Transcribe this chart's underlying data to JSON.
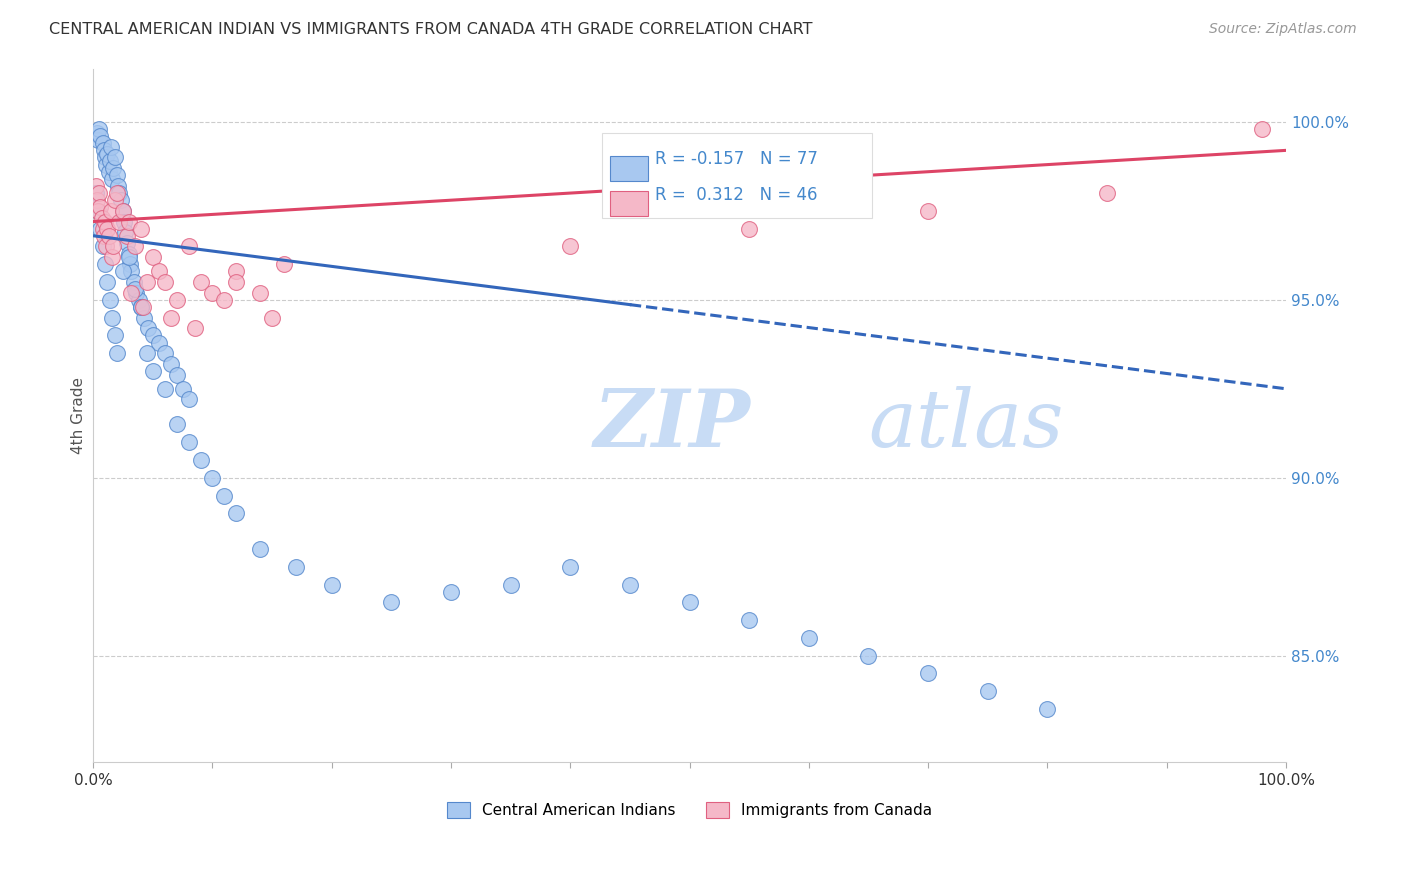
{
  "title": "CENTRAL AMERICAN INDIAN VS IMMIGRANTS FROM CANADA 4TH GRADE CORRELATION CHART",
  "source": "Source: ZipAtlas.com",
  "ylabel": "4th Grade",
  "watermark_zip": "ZIP",
  "watermark_atlas": "atlas",
  "blue_R": -0.157,
  "blue_N": 77,
  "pink_R": 0.312,
  "pink_N": 46,
  "blue_color": "#A8C8F0",
  "pink_color": "#F5B8C8",
  "blue_edge_color": "#5588CC",
  "pink_edge_color": "#E06080",
  "blue_line_color": "#3366BB",
  "pink_line_color": "#DD4466",
  "right_ytick_color": "#4488CC",
  "right_yticks": [
    85.0,
    90.0,
    95.0,
    100.0
  ],
  "blue_line_y0": 96.8,
  "blue_line_y100": 92.5,
  "pink_line_y0": 97.2,
  "pink_line_y100": 99.2,
  "blue_solid_end_x": 45,
  "blue_dots_x": [
    0.3,
    0.4,
    0.5,
    0.6,
    0.8,
    0.9,
    1.0,
    1.1,
    1.2,
    1.3,
    1.4,
    1.5,
    1.6,
    1.7,
    1.8,
    2.0,
    2.1,
    2.2,
    2.3,
    2.5,
    2.6,
    2.7,
    2.8,
    3.0,
    3.1,
    3.2,
    3.4,
    3.6,
    3.8,
    4.0,
    4.3,
    4.6,
    5.0,
    5.5,
    6.0,
    6.5,
    7.0,
    7.5,
    8.0,
    0.2,
    0.4,
    0.6,
    0.8,
    1.0,
    1.2,
    1.4,
    1.6,
    1.8,
    2.0,
    2.5,
    3.0,
    3.5,
    4.0,
    4.5,
    5.0,
    6.0,
    7.0,
    8.0,
    9.0,
    10.0,
    11.0,
    12.0,
    14.0,
    17.0,
    20.0,
    25.0,
    30.0,
    35.0,
    40.0,
    45.0,
    50.0,
    55.0,
    60.0,
    65.0,
    70.0,
    75.0,
    80.0
  ],
  "blue_dots_y": [
    99.7,
    99.5,
    99.8,
    99.6,
    99.4,
    99.2,
    99.0,
    98.8,
    99.1,
    98.6,
    98.9,
    99.3,
    98.4,
    98.7,
    99.0,
    98.5,
    98.2,
    98.0,
    97.8,
    97.5,
    97.2,
    96.9,
    96.6,
    96.3,
    96.0,
    95.8,
    95.5,
    95.2,
    95.0,
    94.8,
    94.5,
    94.2,
    94.0,
    93.8,
    93.5,
    93.2,
    92.9,
    92.5,
    92.2,
    98.0,
    97.5,
    97.0,
    96.5,
    96.0,
    95.5,
    95.0,
    94.5,
    94.0,
    93.5,
    95.8,
    96.2,
    95.3,
    94.8,
    93.5,
    93.0,
    92.5,
    91.5,
    91.0,
    90.5,
    90.0,
    89.5,
    89.0,
    88.0,
    87.5,
    87.0,
    86.5,
    86.8,
    87.0,
    87.5,
    87.0,
    86.5,
    86.0,
    85.5,
    85.0,
    84.5,
    84.0,
    83.5
  ],
  "pink_dots_x": [
    0.2,
    0.3,
    0.4,
    0.5,
    0.6,
    0.7,
    0.8,
    0.9,
    1.0,
    1.1,
    1.2,
    1.3,
    1.5,
    1.6,
    1.7,
    1.8,
    2.0,
    2.2,
    2.5,
    2.8,
    3.0,
    3.5,
    4.0,
    4.5,
    5.0,
    5.5,
    6.0,
    7.0,
    8.0,
    9.0,
    10.0,
    11.0,
    12.0,
    14.0,
    16.0,
    3.2,
    4.2,
    6.5,
    8.5,
    12.0,
    15.0,
    40.0,
    55.0,
    70.0,
    85.0,
    98.0
  ],
  "pink_dots_y": [
    98.2,
    97.8,
    97.5,
    98.0,
    97.6,
    97.3,
    97.0,
    96.8,
    97.2,
    96.5,
    97.0,
    96.8,
    97.5,
    96.2,
    96.5,
    97.8,
    98.0,
    97.2,
    97.5,
    96.8,
    97.2,
    96.5,
    97.0,
    95.5,
    96.2,
    95.8,
    95.5,
    95.0,
    96.5,
    95.5,
    95.2,
    95.0,
    95.8,
    95.2,
    96.0,
    95.2,
    94.8,
    94.5,
    94.2,
    95.5,
    94.5,
    96.5,
    97.0,
    97.5,
    98.0,
    99.8
  ],
  "xlim": [
    0,
    100
  ],
  "ylim": [
    82.0,
    101.5
  ],
  "dot_size": 130
}
